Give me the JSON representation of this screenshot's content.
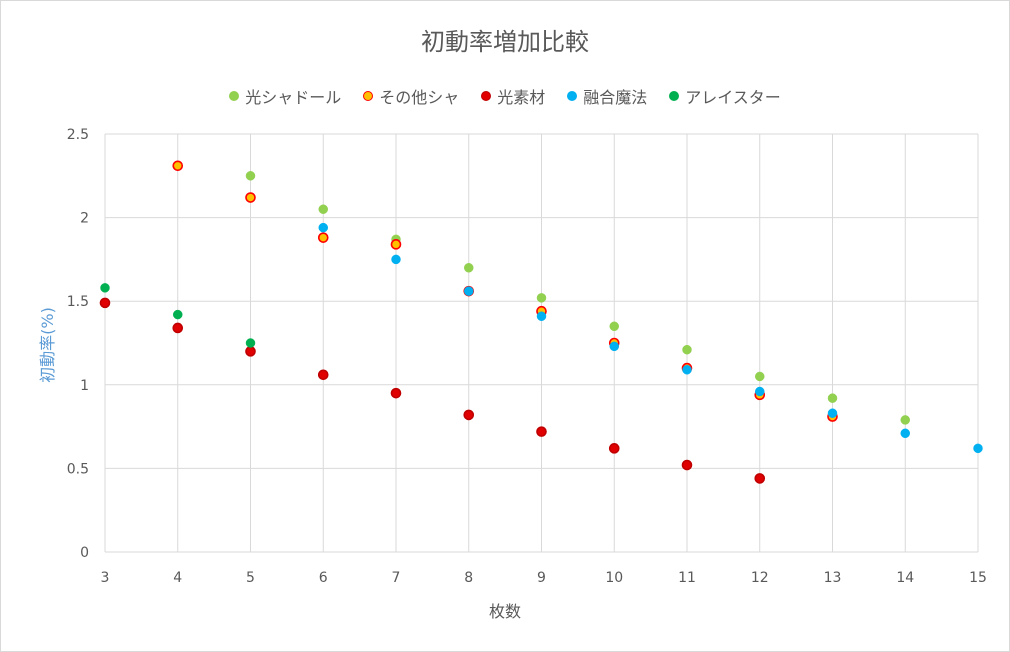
{
  "chart_data": {
    "type": "scatter",
    "title": "初動率増加比較",
    "xlabel": "枚数",
    "ylabel": "初動率(%)",
    "xlim": [
      3,
      15
    ],
    "ylim": [
      0,
      2.5
    ],
    "xticks": [
      "3",
      "4",
      "5",
      "6",
      "7",
      "8",
      "9",
      "10",
      "11",
      "12",
      "13",
      "14",
      "15"
    ],
    "yticks": [
      "0",
      "0.5",
      "1",
      "1.5",
      "2",
      "2.5"
    ],
    "grid": true,
    "legend_position": "top",
    "series": [
      {
        "name": "光シャドール",
        "color": "#92d050",
        "stroke": "#92d050",
        "points": [
          [
            5,
            2.25
          ],
          [
            6,
            2.05
          ],
          [
            7,
            1.87
          ],
          [
            8,
            1.7
          ],
          [
            9,
            1.52
          ],
          [
            10,
            1.35
          ],
          [
            11,
            1.21
          ],
          [
            12,
            1.05
          ],
          [
            13,
            0.92
          ],
          [
            14,
            0.79
          ]
        ]
      },
      {
        "name": "その他シャ",
        "color": "#ffc000",
        "stroke": "#ff0000",
        "points": [
          [
            4,
            2.31
          ],
          [
            5,
            2.12
          ],
          [
            6,
            1.88
          ],
          [
            7,
            1.84
          ],
          [
            8,
            1.56
          ],
          [
            9,
            1.44
          ],
          [
            10,
            1.25
          ],
          [
            11,
            1.1
          ],
          [
            12,
            0.94
          ],
          [
            13,
            0.81
          ]
        ]
      },
      {
        "name": "光素材",
        "color": "#e00000",
        "stroke": "#c00000",
        "points": [
          [
            3,
            1.49
          ],
          [
            4,
            1.34
          ],
          [
            5,
            1.2
          ],
          [
            6,
            1.06
          ],
          [
            7,
            0.95
          ],
          [
            8,
            0.82
          ],
          [
            9,
            0.72
          ],
          [
            10,
            0.62
          ],
          [
            11,
            0.52
          ],
          [
            12,
            0.44
          ]
        ]
      },
      {
        "name": "融合魔法",
        "color": "#00b0f0",
        "stroke": "#00b0f0",
        "points": [
          [
            6,
            1.94
          ],
          [
            7,
            1.75
          ],
          [
            8,
            1.56
          ],
          [
            9,
            1.41
          ],
          [
            10,
            1.23
          ],
          [
            11,
            1.09
          ],
          [
            12,
            0.96
          ],
          [
            13,
            0.83
          ],
          [
            14,
            0.71
          ],
          [
            15,
            0.62
          ]
        ]
      },
      {
        "name": "アレイスター",
        "color": "#00b050",
        "stroke": "#00b050",
        "points": [
          [
            3,
            1.58
          ],
          [
            4,
            1.42
          ],
          [
            5,
            1.25
          ]
        ]
      }
    ]
  }
}
